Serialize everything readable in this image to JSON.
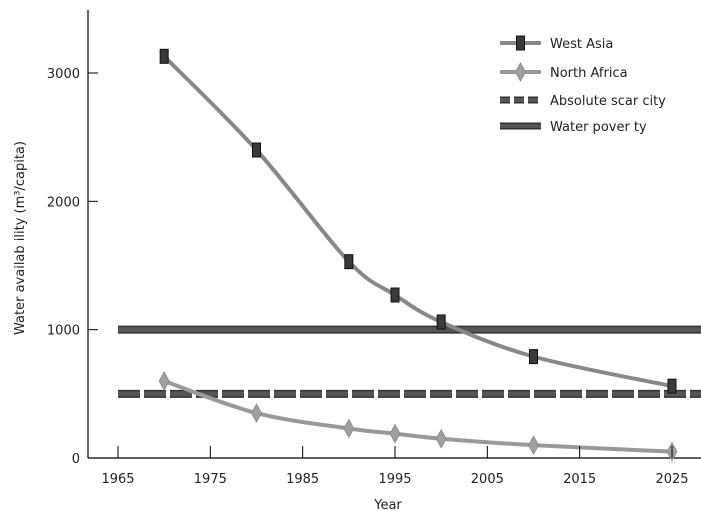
{
  "chart_data": {
    "type": "line",
    "xlabel": "Year",
    "ylabel": "Water availab ility (m³/capita)",
    "xlim": [
      1965,
      2030
    ],
    "ylim": [
      0,
      3500
    ],
    "x_ticks": [
      "1965",
      "1975",
      "1985",
      "1995",
      "2005",
      "2015",
      "2025"
    ],
    "y_ticks": [
      "0",
      "1000",
      "2000",
      "3000"
    ],
    "legend_position": "top-right",
    "grid": false,
    "series": [
      {
        "name": "West Asia",
        "marker": "square",
        "color": "#888888",
        "marker_color": "#333333",
        "x": [
          1970,
          1980,
          1990,
          1995,
          2000,
          2010,
          2025
        ],
        "y": [
          3130,
          2400,
          1530,
          1270,
          1060,
          790,
          560
        ]
      },
      {
        "name": "North Africa",
        "marker": "diamond",
        "color": "#999999",
        "marker_color": "#999999",
        "x": [
          1970,
          1980,
          1990,
          1995,
          2000,
          2010,
          2025
        ],
        "y": [
          600,
          350,
          230,
          190,
          150,
          100,
          50
        ]
      },
      {
        "name": "Absolute scar city",
        "style": "dashed",
        "color": "#555555",
        "x": [
          1965,
          2030
        ],
        "y": [
          500,
          500
        ]
      },
      {
        "name": "Water pover ty",
        "style": "solid",
        "color": "#555555",
        "x": [
          1965,
          2030
        ],
        "y": [
          1000,
          1000
        ]
      }
    ]
  }
}
